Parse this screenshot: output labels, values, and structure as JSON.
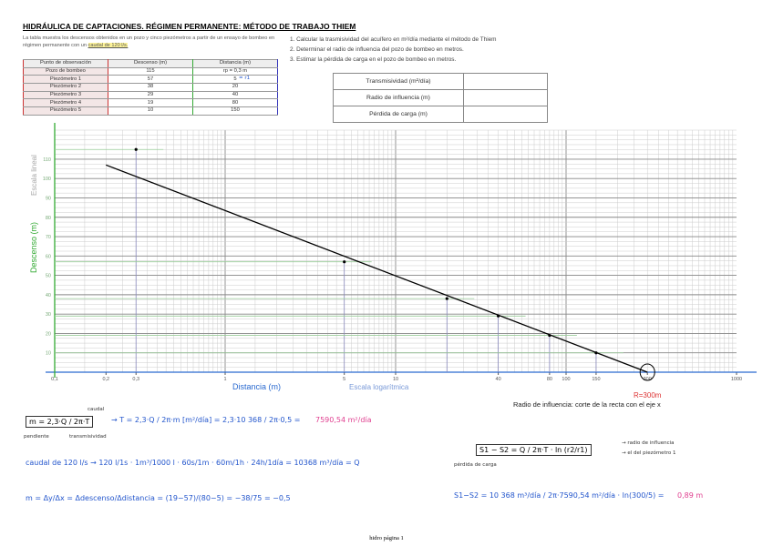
{
  "header": {
    "title": "HIDRÁULICA DE CAPTACIONES. RÉGIMEN PERMANENTE: MÉTODO DE TRABAJO THIEM",
    "intro": "La tabla muestra los descensos obtenidos en un pozo y cinco piezómetros a partir de un ensayo de bombeo en régimen permanente con un",
    "intro_highlight": "caudal de 120 l/s."
  },
  "questions": [
    "1. Calcular la trasmisividad del acuífero en m²/día mediante el método de Thiem",
    "2. Determinar el radio de influencia del pozo de bombeo en metros.",
    "3. Estimar la pérdida de carga en el pozo de bombeo en metros."
  ],
  "data_table": {
    "columns": [
      "Punto de observación",
      "Descenso (m)",
      "Distancia (m)"
    ],
    "rows": [
      [
        "Pozo de bombeo",
        115,
        "rp = 0,3 m"
      ],
      [
        "Piezómetro 1",
        57,
        5
      ],
      [
        "Piezómetro 2",
        38,
        20
      ],
      [
        "Piezómetro 3",
        29,
        40
      ],
      [
        "Piezómetro 4",
        19,
        80
      ],
      [
        "Piezómetro 5",
        10,
        150
      ]
    ],
    "annotation": "= r1"
  },
  "answer_table": {
    "rows": [
      "Transmisividad (m²/día)",
      "Radio de influencia (m)",
      "Pérdida de carga (m)"
    ]
  },
  "chart_data": {
    "type": "scatter",
    "x": [
      0.3,
      5,
      20,
      40,
      80,
      150
    ],
    "y": [
      115,
      57,
      38,
      29,
      19,
      10
    ],
    "fit_line": {
      "x": [
        0.2,
        300
      ],
      "y": [
        107,
        0
      ]
    },
    "xscale": "log",
    "xlim": [
      0.1,
      1000
    ],
    "ylim": [
      0,
      125
    ],
    "xticks": [
      {
        "value": 0.1,
        "label": "0,1"
      },
      {
        "value": 0.2,
        "label": "0,2"
      },
      {
        "value": 0.3,
        "label": "0,3"
      },
      1,
      5,
      10,
      40,
      80,
      100,
      150,
      300,
      1000
    ],
    "yticks": [
      10,
      20,
      30,
      40,
      50,
      60,
      70,
      80,
      90,
      100,
      110
    ],
    "grid": true,
    "y_label": "Descenso (m)",
    "y_note": "Escala lineal",
    "x_label": "Distancia (m)",
    "x_note": "Escala logarítmica",
    "radius_label": "R=300m",
    "radius_note": "Radio de influencia: corte de la recta con el eje x"
  },
  "notes": {
    "t_formula": "m = 2,3·Q / 2π·T",
    "t_solve": "→ T = 2,3·Q / 2π·m [m²/día] = 2,3·10 368 / 2π·0,5 =",
    "t_result": "7590,54 m²/día",
    "caudal_tag": "caudal",
    "pendiente_tag": "pendiente",
    "transmisividad_tag": "transmisividad",
    "q_conversion": "caudal de 120 l/s → 120 l/1s · 1m³/1000 l · 60s/1m · 60m/1h · 24h/1día = 10368 m³/día = Q",
    "slope": "m = Δy/Δx = Δdescenso/Δdistancia = (19−57)/(80−5) = −38/75 = −0,5",
    "thiem": "S1 − S2 = Q / 2π·T · ln (r2/r1)",
    "r2_tag": "→ radio de influencia",
    "r1_tag": "→ el del piezómetro 1",
    "loss_tag": "pérdida de carga",
    "loss_calc": "S1−S2 = 10 368 m³/día / 2π·7590,54 m²/día · ln(300/5) =",
    "loss_result": "0,89 m"
  },
  "footer": "hidro página 1"
}
